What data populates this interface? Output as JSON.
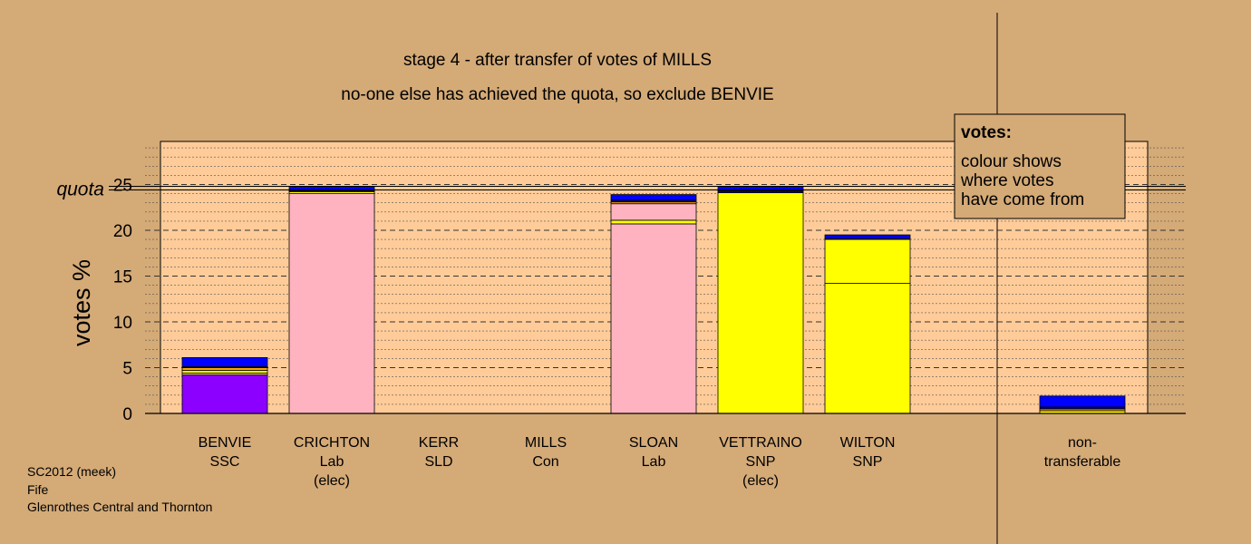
{
  "chart_data": {
    "type": "bar",
    "title": "stage 4 - after transfer of votes of MILLS",
    "subtitle": "no-one else has achieved the quota, so exclude BENVIE",
    "ylabel": "votes %",
    "ylim": [
      0,
      29.5
    ],
    "yticks": [
      0,
      5,
      10,
      15,
      20,
      25
    ],
    "quota_value": 24.6,
    "quota_label": "quota",
    "categories": [
      {
        "name": "BENVIE",
        "party": "SSC",
        "note": ""
      },
      {
        "name": "CRICHTON",
        "party": "Lab",
        "note": "(elec)"
      },
      {
        "name": "KERR",
        "party": "SLD",
        "note": ""
      },
      {
        "name": "MILLS",
        "party": "Con",
        "note": ""
      },
      {
        "name": "SLOAN",
        "party": "Lab",
        "note": ""
      },
      {
        "name": "VETTRAINO",
        "party": "SNP",
        "note": "(elec)"
      },
      {
        "name": "WILTON",
        "party": "SNP",
        "note": ""
      },
      {
        "name": "",
        "party": "",
        "note": ""
      },
      {
        "name": "non-",
        "party": "transferable",
        "note": ""
      }
    ],
    "bars": [
      [
        {
          "value": 4.2,
          "color": "#8B00FF"
        },
        {
          "value": 0.2,
          "color": "#FFB3C1"
        },
        {
          "value": 0.3,
          "color": "#FFFF00"
        },
        {
          "value": 0.3,
          "color": "#FFA500"
        },
        {
          "value": 0.1,
          "color": "#00008B"
        },
        {
          "value": 1.0,
          "color": "#0000FF"
        }
      ],
      [
        {
          "value": 24.0,
          "color": "#FFB3C1"
        },
        {
          "value": 0.2,
          "color": "#FFFF00"
        },
        {
          "value": 0.1,
          "color": "#FFA500"
        },
        {
          "value": 0.1,
          "color": "#00008B"
        },
        {
          "value": 0.3,
          "color": "#0000FF"
        }
      ],
      [],
      [],
      [
        {
          "value": 20.7,
          "color": "#FFB3C1"
        },
        {
          "value": 0.4,
          "color": "#FFFF00"
        },
        {
          "value": 1.8,
          "color": "#FFB3C1"
        },
        {
          "value": 0.2,
          "color": "#FFA500"
        },
        {
          "value": 0.2,
          "color": "#00008B"
        },
        {
          "value": 0.6,
          "color": "#0000FF"
        }
      ],
      [
        {
          "value": 24.1,
          "color": "#FFFF00"
        },
        {
          "value": 0.2,
          "color": "#00008B"
        },
        {
          "value": 0.4,
          "color": "#0000FF"
        }
      ],
      [
        {
          "value": 14.2,
          "color": "#FFFF00"
        },
        {
          "value": 4.8,
          "color": "#FFFF00"
        },
        {
          "value": 0.1,
          "color": "#00008B"
        },
        {
          "value": 0.4,
          "color": "#0000FF"
        }
      ],
      [],
      [
        {
          "value": 0.3,
          "color": "#FFFF00"
        },
        {
          "value": 0.2,
          "color": "#FFA500"
        },
        {
          "value": 0.2,
          "color": "#00008B"
        },
        {
          "value": 1.2,
          "color": "#0000FF"
        }
      ]
    ],
    "legend": {
      "heading": "votes:",
      "lines": [
        "colour shows",
        "where votes",
        "have come from"
      ]
    },
    "footer": [
      "SC2012 (meek)",
      "Fife",
      "Glenrothes Central and Thornton"
    ],
    "colors": {
      "background": "#D4AA77",
      "plot_area": "#FFCC99",
      "legend_box": "#D4AA77"
    }
  }
}
